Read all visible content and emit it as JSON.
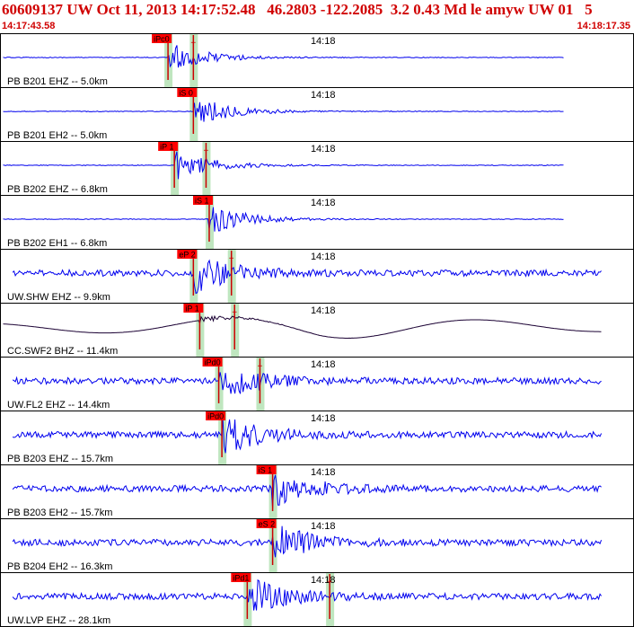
{
  "header": {
    "title": "60609137 UW Oct 11, 2013 14:17:52.48   46.2803 -122.2085  3.2 0.43 Md le amyw UW 01   5",
    "start_time": "14:17:43.58",
    "end_time": "14:18:17.35"
  },
  "colors": {
    "trace": "#0000ee",
    "trace_dark": "#1a0033",
    "pick_box": "#ff0000",
    "window": "#bfe6bf",
    "title": "#d00000"
  },
  "traces": [
    {
      "label": "PB B201 EHZ -- 5.0km",
      "time_label": "14:18",
      "picks": [
        {
          "label": "iPc0",
          "t": 0.265
        },
        {
          "label": "",
          "t": 0.305
        }
      ],
      "color": "blue"
    },
    {
      "label": "PB B201 EH2 -- 5.0km",
      "time_label": "14:18",
      "picks": [
        {
          "label": "iS 0",
          "t": 0.305
        }
      ],
      "color": "blue"
    },
    {
      "label": "PB B202 EHZ -- 6.8km",
      "time_label": "14:18",
      "picks": [
        {
          "label": "iP 1",
          "t": 0.275
        },
        {
          "label": "",
          "t": 0.325
        }
      ],
      "color": "blue"
    },
    {
      "label": "PB B202 EH1 -- 6.8km",
      "time_label": "14:18",
      "picks": [
        {
          "label": "iS 1",
          "t": 0.33
        }
      ],
      "color": "blue"
    },
    {
      "label": "UW.SHW EHZ -- 9.9km",
      "time_label": "14:18",
      "picks": [
        {
          "label": "eP 2",
          "t": 0.305
        },
        {
          "label": "",
          "t": 0.365
        }
      ],
      "color": "blue"
    },
    {
      "label": "CC.SWF2 BHZ -- 11.4km",
      "time_label": "14:18",
      "picks": [
        {
          "label": "iP 1",
          "t": 0.315
        },
        {
          "label": "",
          "t": 0.37
        }
      ],
      "color": "dark"
    },
    {
      "label": "UW.FL2 EHZ -- 14.4km",
      "time_label": "14:18",
      "picks": [
        {
          "label": "iPd0",
          "t": 0.345
        },
        {
          "label": "",
          "t": 0.41
        }
      ],
      "color": "blue"
    },
    {
      "label": "PB B203 EHZ -- 15.7km",
      "time_label": "14:18",
      "picks": [
        {
          "label": "iPd0",
          "t": 0.35
        }
      ],
      "color": "blue"
    },
    {
      "label": "PB B203 EH2 -- 15.7km",
      "time_label": "14:18",
      "picks": [
        {
          "label": "iS 1",
          "t": 0.43
        }
      ],
      "color": "blue"
    },
    {
      "label": "PB B204 EH2 -- 16.3km",
      "time_label": "14:18",
      "picks": [
        {
          "label": "eS 2",
          "t": 0.43
        }
      ],
      "color": "blue"
    },
    {
      "label": "UW.LVP EHZ -- 28.1km",
      "time_label": "14:18",
      "picks": [
        {
          "label": "iPd1",
          "t": 0.39
        },
        {
          "label": "",
          "t": 0.52
        }
      ],
      "color": "blue"
    }
  ]
}
